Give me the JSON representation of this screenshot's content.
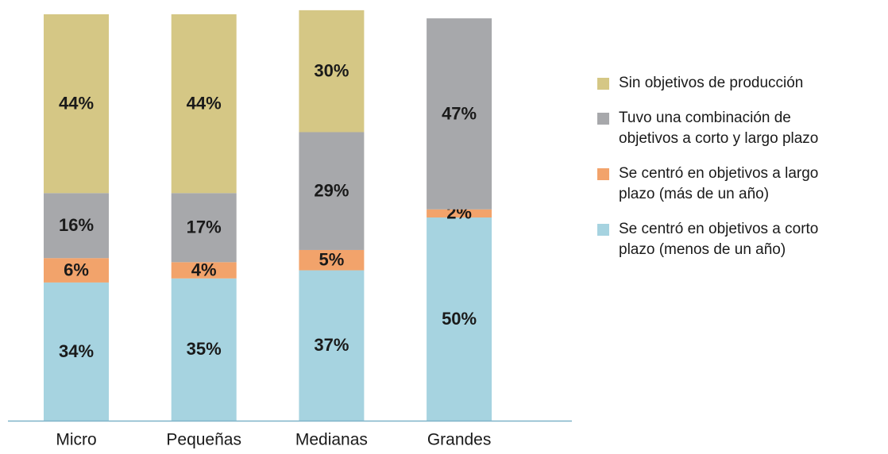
{
  "chart_data": {
    "type": "stacked_bar",
    "categories": [
      "Micro",
      "Pequeñas",
      "Medianas",
      "Grandes"
    ],
    "ylim": [
      0,
      100
    ],
    "series": [
      {
        "name": "Se centró en objetivos a corto plazo (menos de un año)",
        "color": "#a6d3e0",
        "values": [
          34,
          35,
          37,
          50
        ],
        "value_labels": [
          "34%",
          "35%",
          "37%",
          "50%"
        ]
      },
      {
        "name": "Se centró en objetivos a largo plazo (más de un año)",
        "color": "#f2a36b",
        "values": [
          6,
          4,
          5,
          2
        ],
        "value_labels": [
          "6%",
          "4%",
          "5%",
          "2%"
        ]
      },
      {
        "name": "Tuvo una combinación de objetivos a corto y largo plazo",
        "color": "#a7a8ab",
        "values": [
          16,
          17,
          29,
          47
        ],
        "value_labels": [
          "16%",
          "17%",
          "29%",
          "47%"
        ]
      },
      {
        "name": "Sin objetivos de producción",
        "color": "#d5c785",
        "values": [
          44,
          44,
          30,
          null
        ],
        "value_labels": [
          "44%",
          "44%",
          "30%",
          null
        ]
      }
    ]
  }
}
